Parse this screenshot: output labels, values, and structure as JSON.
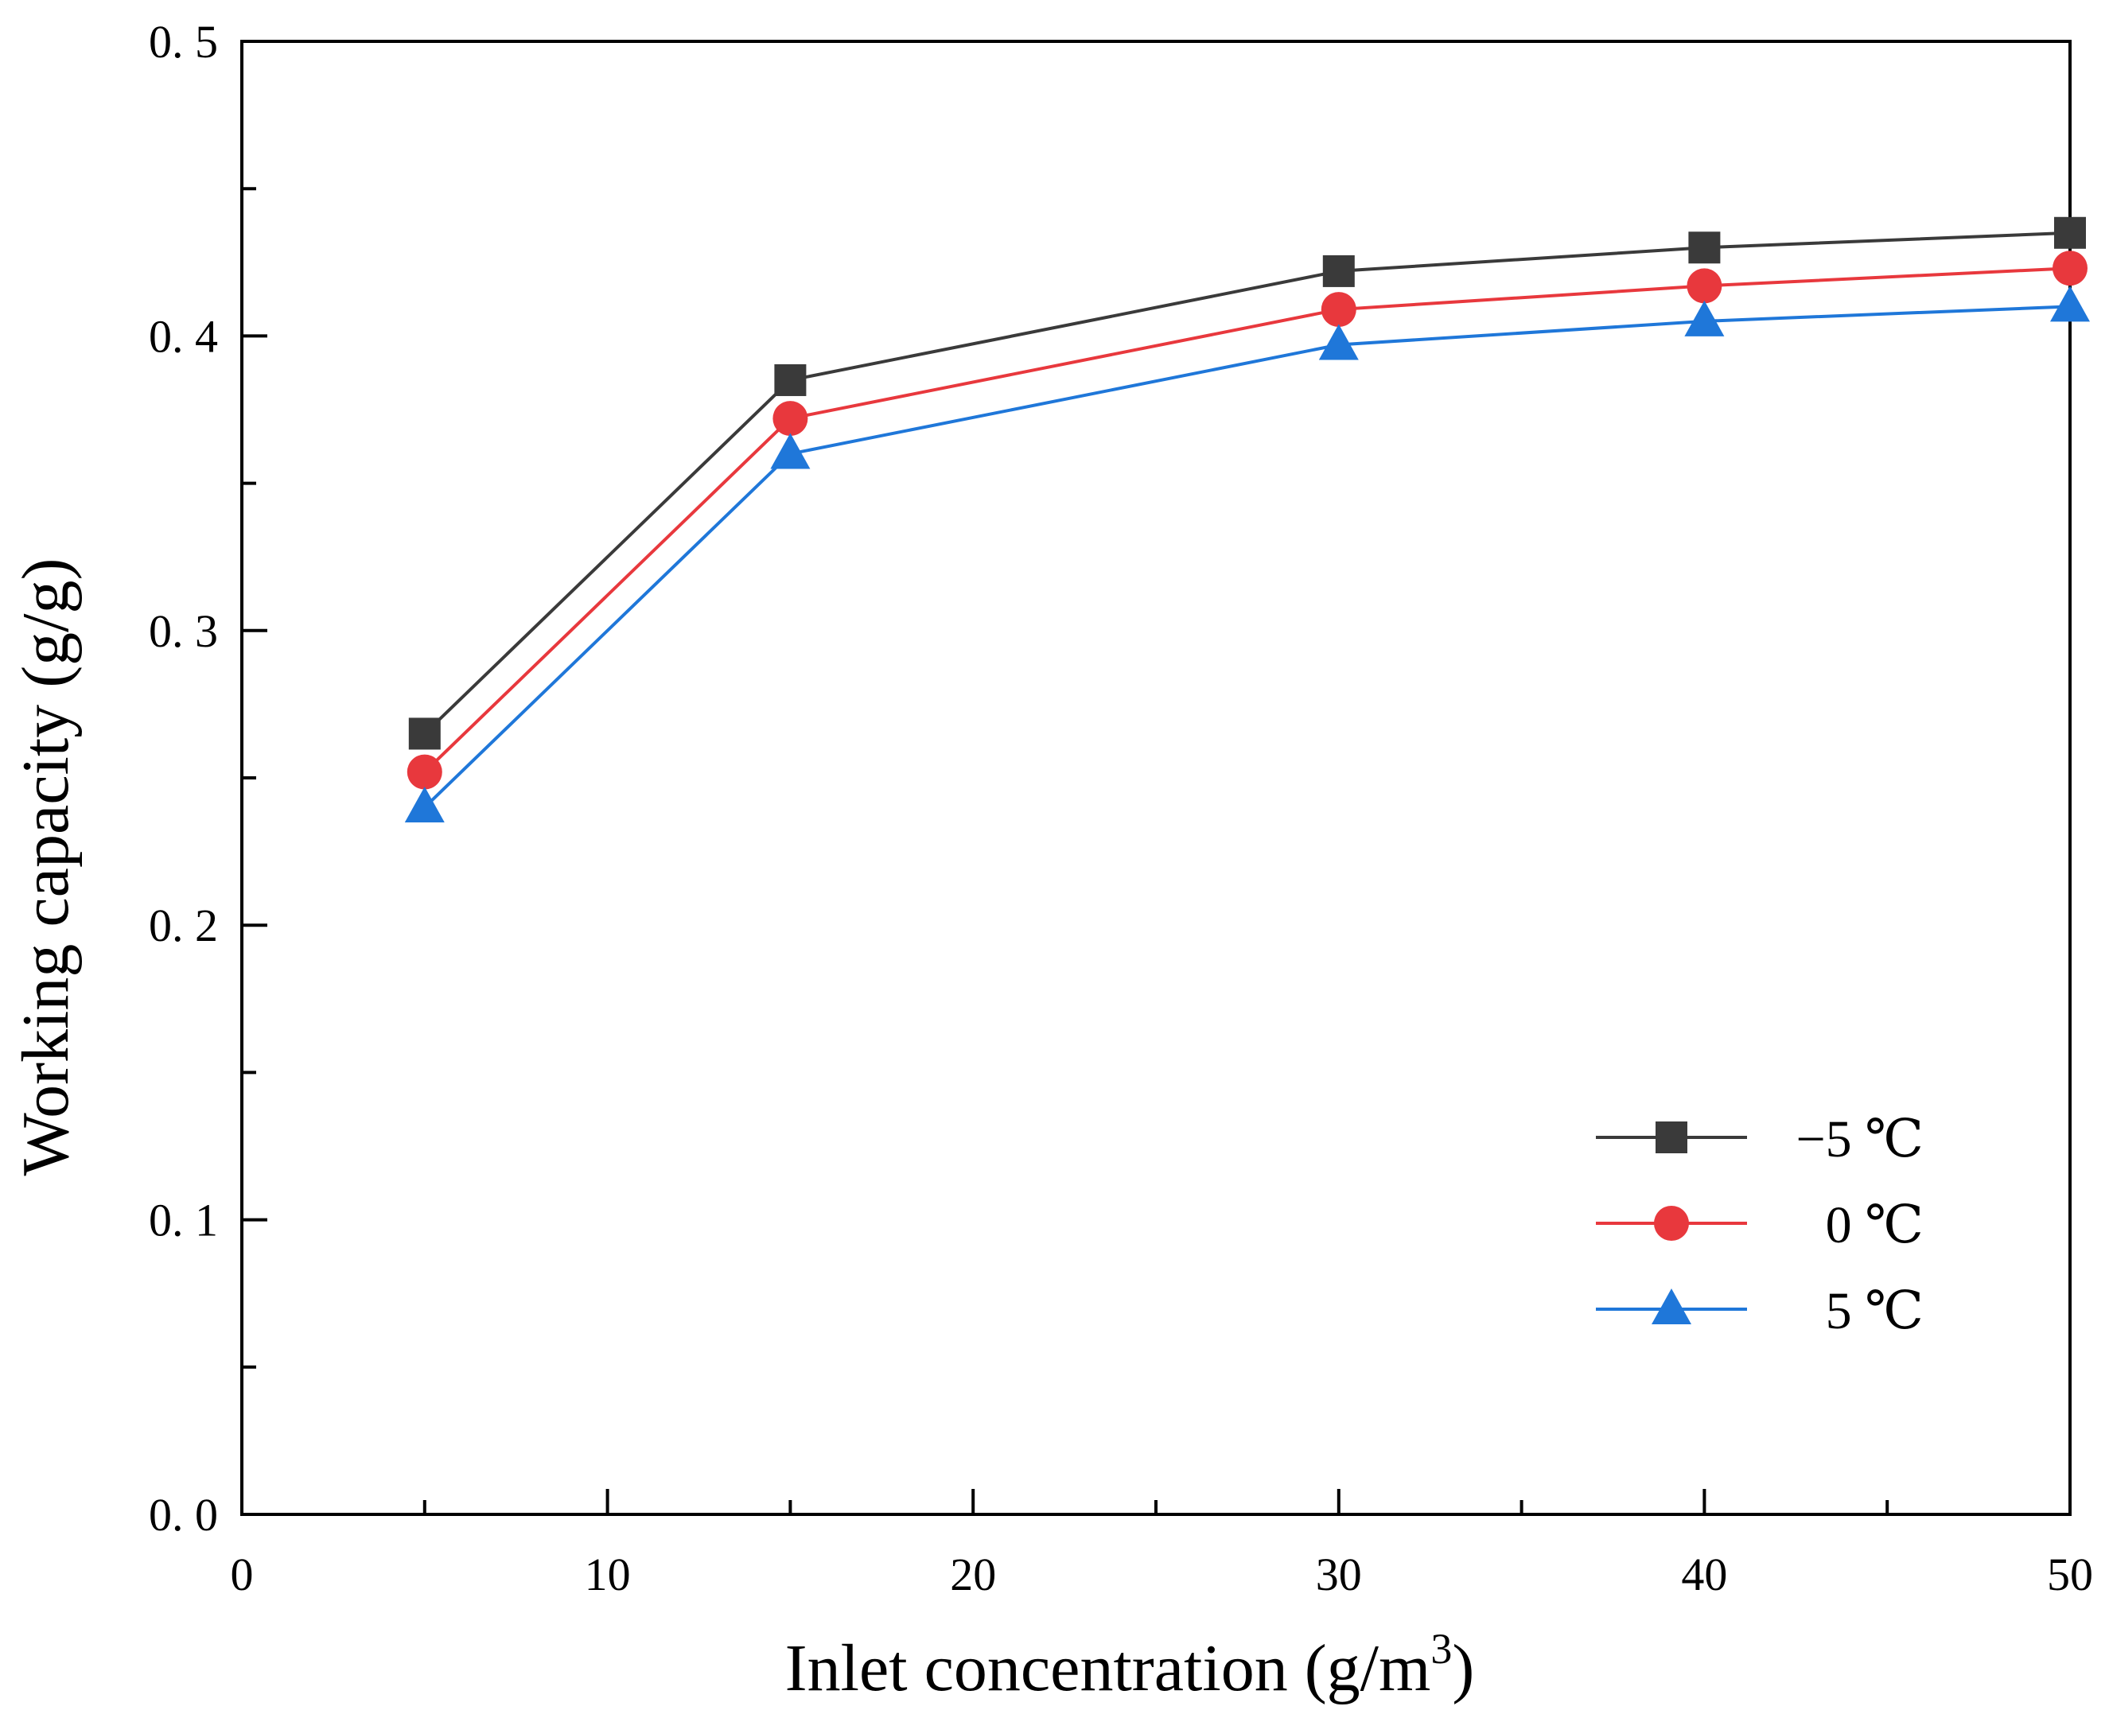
{
  "chart_data": {
    "type": "line",
    "title": "",
    "xlabel": "Inlet concentration (g/m",
    "xlabel_superscript": "3",
    "xlabel_suffix": ")",
    "ylabel": "Working capacity (g/g)",
    "xlim": [
      0,
      50
    ],
    "ylim": [
      0.0,
      0.5
    ],
    "x_ticks": [
      0,
      10,
      20,
      30,
      40,
      50
    ],
    "x_tick_labels": [
      "0",
      "10",
      "20",
      "30",
      "40",
      "50"
    ],
    "y_ticks": [
      0.0,
      0.1,
      0.2,
      0.3,
      0.4,
      0.5
    ],
    "y_tick_labels": [
      "0. 0",
      "0. 1",
      "0. 2",
      "0. 3",
      "0. 4",
      "0. 5"
    ],
    "grid": false,
    "legend_position": "bottom-right",
    "x": [
      5,
      15,
      30,
      40,
      50
    ],
    "series": [
      {
        "name": "−5 ℃",
        "marker": "square",
        "color": "#3a3a3a",
        "values": [
          0.265,
          0.385,
          0.422,
          0.43,
          0.435
        ]
      },
      {
        "name": "0 ℃",
        "marker": "circle",
        "color": "#e8383d",
        "values": [
          0.252,
          0.372,
          0.409,
          0.417,
          0.423
        ]
      },
      {
        "name": "5 ℃",
        "marker": "triangle",
        "color": "#1f77d9",
        "values": [
          0.24,
          0.36,
          0.397,
          0.405,
          0.41
        ]
      }
    ]
  }
}
